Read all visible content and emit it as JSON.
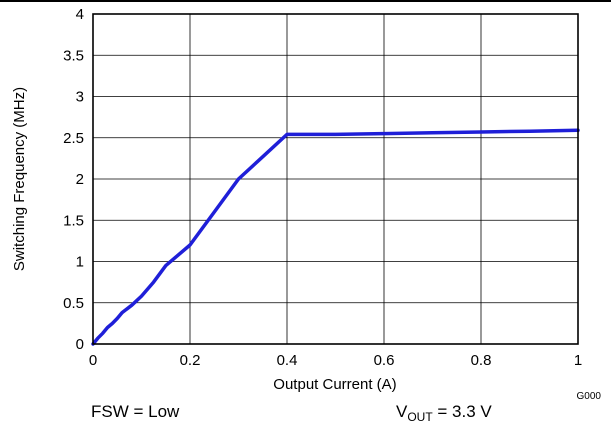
{
  "chart_data": {
    "type": "line",
    "xlabel": "Output Current (A)",
    "ylabel": "Switching Frequency (MHz)",
    "xlim": [
      0,
      1
    ],
    "ylim": [
      0,
      4
    ],
    "x_ticks": [
      "0",
      "0.2",
      "0.4",
      "0.6",
      "0.8",
      "1"
    ],
    "y_ticks": [
      "0",
      "0.5",
      "1",
      "1.5",
      "2",
      "2.5",
      "3",
      "3.5",
      "4"
    ],
    "grid": true,
    "series": [
      {
        "color": "#1f1fd8",
        "x": [
          0,
          0.01,
          0.02,
          0.03,
          0.04,
          0.05,
          0.06,
          0.08,
          0.1,
          0.125,
          0.15,
          0.2,
          0.25,
          0.3,
          0.35,
          0.4,
          0.5,
          0.6,
          0.7,
          0.8,
          0.9,
          1.0
        ],
        "y": [
          0,
          0.07,
          0.13,
          0.2,
          0.25,
          0.31,
          0.38,
          0.47,
          0.58,
          0.75,
          0.95,
          1.2,
          1.6,
          2.0,
          2.27,
          2.54,
          2.54,
          2.55,
          2.56,
          2.57,
          2.58,
          2.59
        ]
      }
    ],
    "annotations": {
      "code": "G000",
      "fsw": "FSW = Low",
      "vout_label": "V",
      "vout_sub": "OUT",
      "vout_value": " = 3.3 V"
    }
  }
}
